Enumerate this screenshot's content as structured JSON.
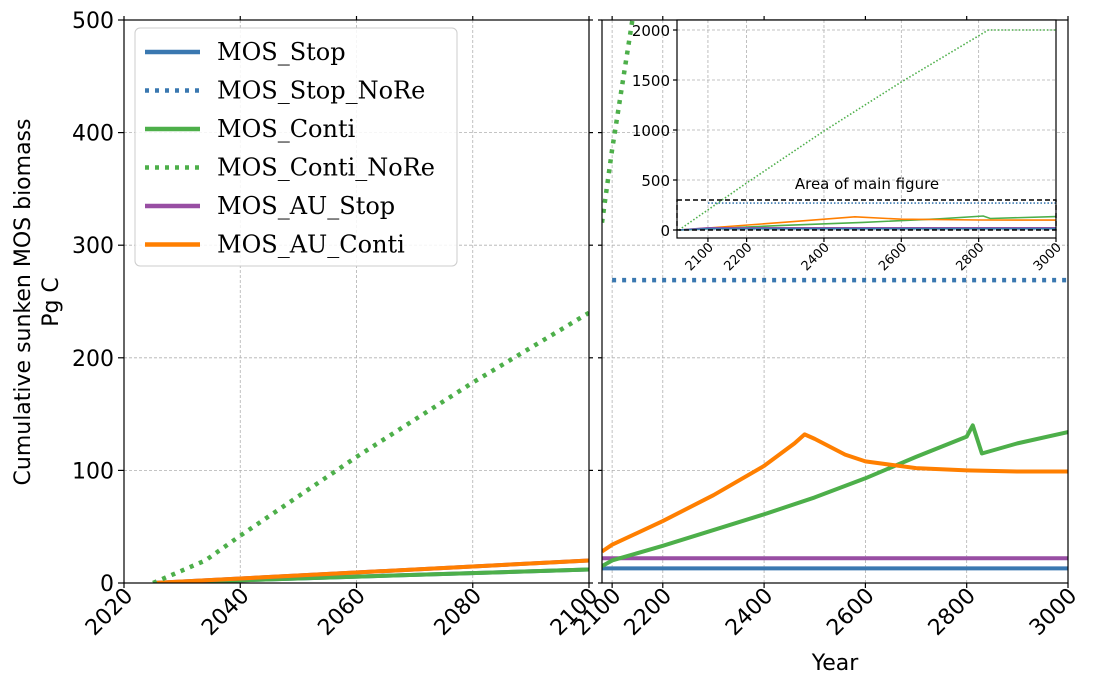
{
  "chart_data": {
    "type": "line",
    "ylabel": "Cumulative sunken MOS biomass",
    "ylabel_unit": "Pg C",
    "xlabel": "Year",
    "ylim": [
      0,
      500
    ],
    "yticks": [
      "0",
      "100",
      "200",
      "300",
      "400",
      "500"
    ],
    "grid": true,
    "legend_position": "upper-left",
    "colors": {
      "MOS_Stop": "#3a78b0",
      "MOS_Stop_NoRe": "#3a78b0",
      "MOS_Conti": "#4daf4a",
      "MOS_Conti_NoRe": "#4daf4a",
      "MOS_AU_Stop": "#984ea3",
      "MOS_AU_Conti": "#ff7f00"
    },
    "legend": [
      {
        "name": "MOS_Stop",
        "style": "solid"
      },
      {
        "name": "MOS_Stop_NoRe",
        "style": "dotted"
      },
      {
        "name": "MOS_Conti",
        "style": "solid"
      },
      {
        "name": "MOS_Conti_NoRe",
        "style": "dotted"
      },
      {
        "name": "MOS_AU_Stop",
        "style": "solid"
      },
      {
        "name": "MOS_AU_Conti",
        "style": "solid"
      }
    ],
    "left_panel": {
      "xlim": [
        2020,
        2100
      ],
      "xticks": [
        "2020",
        "2040",
        "2060",
        "2080",
        "2100"
      ],
      "series": [
        {
          "name": "MOS_Stop",
          "style": "solid",
          "x": [
            2025,
            2100
          ],
          "y": [
            0,
            12
          ]
        },
        {
          "name": "MOS_Conti",
          "style": "solid",
          "x": [
            2025,
            2100
          ],
          "y": [
            0,
            12
          ]
        },
        {
          "name": "MOS_AU_Stop",
          "style": "solid",
          "x": [
            2025,
            2100
          ],
          "y": [
            0,
            20
          ]
        },
        {
          "name": "MOS_AU_Conti",
          "style": "solid",
          "x": [
            2025,
            2100
          ],
          "y": [
            0,
            20
          ]
        },
        {
          "name": "MOS_Conti_NoRe",
          "style": "dotted",
          "x": [
            2025,
            2034,
            2040,
            2060,
            2080,
            2100
          ],
          "y": [
            0,
            20,
            42,
            112,
            178,
            240
          ]
        }
      ]
    },
    "right_panel": {
      "xlim": [
        2080,
        3000
      ],
      "xticks": [
        "2100",
        "2200",
        "2400",
        "2600",
        "2800",
        "3000"
      ],
      "series": [
        {
          "name": "MOS_Stop",
          "style": "solid",
          "x": [
            2080,
            3000
          ],
          "y": [
            13,
            13
          ]
        },
        {
          "name": "MOS_AU_Stop",
          "style": "solid",
          "x": [
            2080,
            3000
          ],
          "y": [
            22,
            22
          ]
        },
        {
          "name": "MOS_Stop_NoRe",
          "style": "dotted",
          "x": [
            2100,
            3000
          ],
          "y": [
            269,
            269
          ]
        },
        {
          "name": "MOS_Conti_NoRe",
          "style": "dotted",
          "x": [
            2080,
            2100,
            2140
          ],
          "y": [
            320,
            385,
            500
          ]
        },
        {
          "name": "MOS_Conti",
          "style": "solid",
          "x": [
            2080,
            2100,
            2200,
            2300,
            2400,
            2500,
            2600,
            2700,
            2800,
            2812,
            2830,
            2900,
            3000
          ],
          "y": [
            15,
            20,
            33,
            47,
            61,
            76,
            93,
            112,
            130,
            140,
            115,
            124,
            134
          ]
        },
        {
          "name": "MOS_AU_Conti",
          "style": "solid",
          "x": [
            2080,
            2100,
            2200,
            2300,
            2400,
            2460,
            2480,
            2500,
            2560,
            2600,
            2700,
            2800,
            2900,
            3000
          ],
          "y": [
            28,
            34,
            55,
            78,
            104,
            124,
            132,
            128,
            114,
            108,
            102,
            100,
            99,
            99
          ]
        }
      ]
    },
    "inset": {
      "xlim": [
        2020,
        3000
      ],
      "ylim": [
        -80,
        2100
      ],
      "xticks": [
        "2100",
        "2200",
        "2400",
        "2600",
        "2800",
        "3000"
      ],
      "yticks": [
        "0",
        "500",
        "1000",
        "1500",
        "2000"
      ],
      "annotation": "Area of main figure",
      "series": [
        {
          "name": "MOS_Conti_NoRe",
          "style": "dotted",
          "x": [
            2025,
            2200,
            2400,
            2600,
            2825,
            3000
          ],
          "y": [
            0,
            470,
            990,
            1480,
            2000,
            2000
          ]
        },
        {
          "name": "MOS_Stop_NoRe",
          "style": "dotted",
          "x": [
            2100,
            3000
          ],
          "y": [
            269,
            269
          ]
        },
        {
          "name": "MOS_Conti",
          "style": "solid",
          "x": [
            2025,
            2100,
            2300,
            2500,
            2700,
            2812,
            2830,
            3000
          ],
          "y": [
            0,
            12,
            47,
            76,
            112,
            140,
            115,
            134
          ]
        },
        {
          "name": "MOS_AU_Conti",
          "style": "solid",
          "x": [
            2025,
            2100,
            2300,
            2480,
            2600,
            2800,
            3000
          ],
          "y": [
            0,
            20,
            78,
            132,
            108,
            100,
            99
          ]
        },
        {
          "name": "MOS_AU_Stop",
          "style": "solid",
          "x": [
            2025,
            2100,
            3000
          ],
          "y": [
            0,
            22,
            22
          ]
        },
        {
          "name": "MOS_Stop",
          "style": "solid",
          "x": [
            2025,
            2100,
            3000
          ],
          "y": [
            0,
            13,
            13
          ]
        }
      ]
    }
  }
}
